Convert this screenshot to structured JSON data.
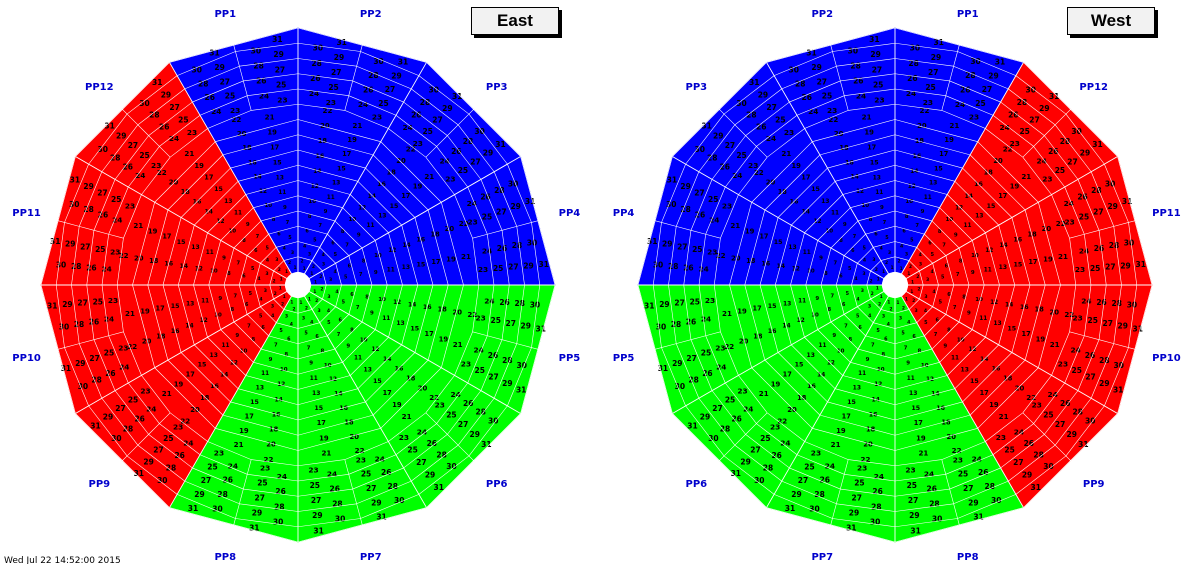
{
  "panels": [
    {
      "id": "east",
      "title": "East",
      "sector_colors": {
        "pp1_4": "#0000ff",
        "pp5_8": "#00ff00",
        "pp9_12": "#ff0000"
      },
      "pp_labels": [
        "PP1",
        "PP2",
        "PP3",
        "PP4",
        "PP5",
        "PP6",
        "PP7",
        "PP8",
        "PP9",
        "PP10",
        "PP11",
        "PP12"
      ]
    },
    {
      "id": "west",
      "title": "West",
      "sector_colors": {
        "pp1_4": "#0000ff",
        "pp5_8": "#00ff00",
        "pp9_12": "#ff0000"
      },
      "pp_labels": [
        "PP1",
        "PP2",
        "PP3",
        "PP4",
        "PP5",
        "PP6",
        "PP7",
        "PP8",
        "PP9",
        "PP10",
        "PP11",
        "PP12"
      ]
    }
  ],
  "tile_number_range": [
    1,
    31
  ],
  "footer": "Wed Jul 22 14:52:00 2015"
}
